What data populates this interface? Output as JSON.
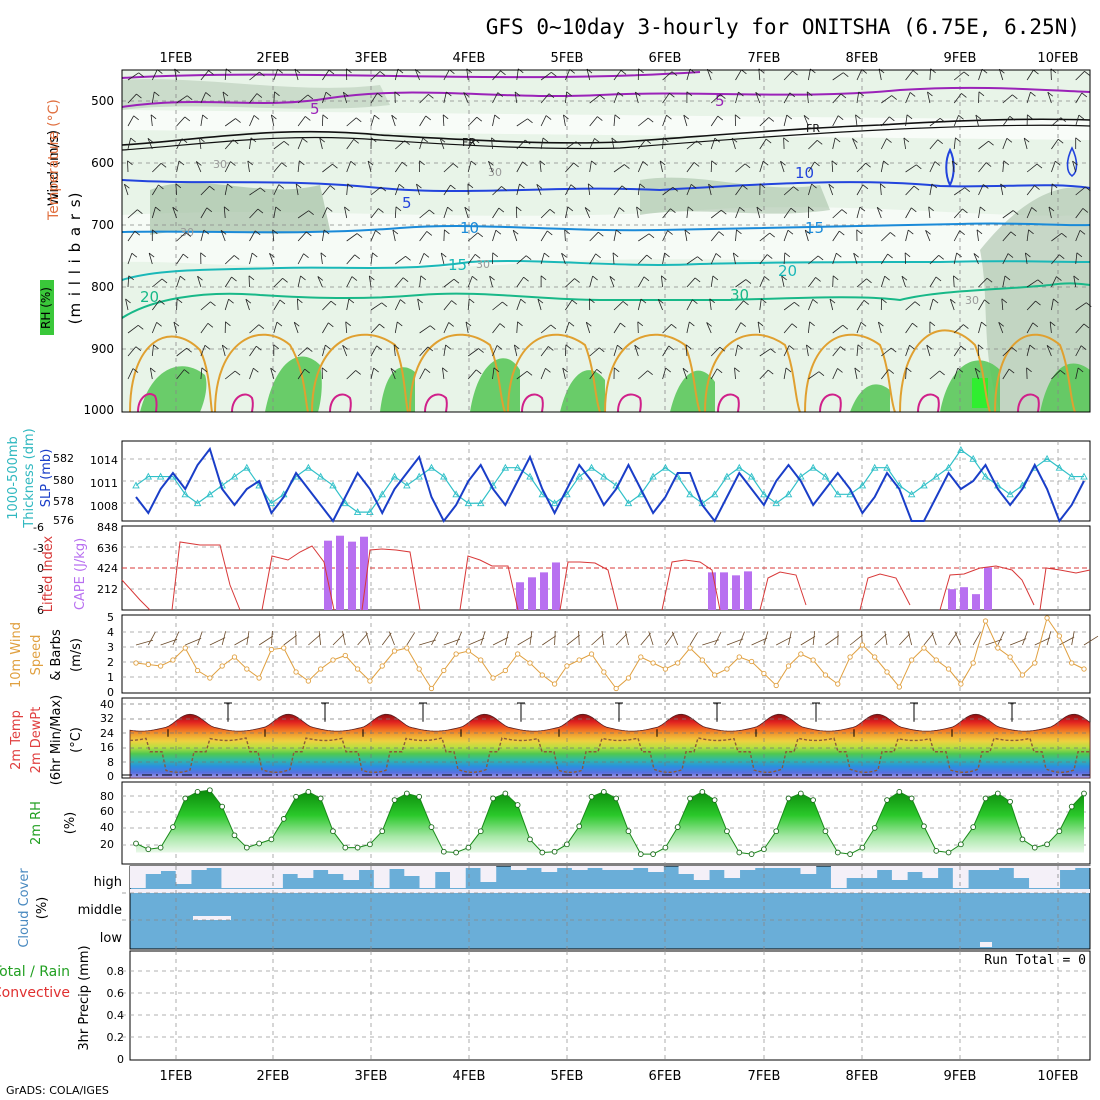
{
  "title": "GFS 0~10day 3-hourly for ONITSHA (6.75E, 6.25N)",
  "footer": "GrADS: COLA/IGES",
  "run_total": "Run Total = 0",
  "dates": [
    "1FEB",
    "2FEB",
    "3FEB",
    "4FEB",
    "5FEB",
    "6FEB",
    "7FEB",
    "8FEB",
    "9FEB",
    "10FEB"
  ],
  "colors": {
    "temp_purple": "#9a22b8",
    "temp_blue": "#2244dd",
    "temp_lightblue": "#1a8ad8",
    "temp_cyan": "#1ab8b8",
    "temp_green": "#18b888",
    "temp_orange": "#e0a030",
    "temp_magenta": "#d0208a",
    "slp": "#1a3ec8",
    "thickness": "#30c0c8",
    "cape": "#b870f0",
    "lifted_index": "#d83838",
    "wind10m": "#e0a040",
    "rh_green": "#22b022",
    "cloud": "#6aaed8",
    "label_green": "#22a022",
    "label_orange": "#e0a040",
    "label_red": "#e03030"
  },
  "panels": {
    "upper_air": {
      "ylabels": [
        "Wind (m/s)",
        "Temperature (°C)",
        "RH (%)",
        "(m i l l i b a r s)"
      ],
      "yticks": [
        "500",
        "600",
        "700",
        "800",
        "900",
        "1000"
      ],
      "contour_labels": [
        "5",
        "FR",
        "FR",
        "5",
        "5",
        "10",
        "10",
        "15",
        "15",
        "20",
        "20",
        "30",
        "30",
        "30",
        "30",
        "30",
        "30"
      ]
    },
    "slp_thickness": {
      "ylabels": [
        "1000-500mb",
        "Thickness (dm)",
        "SLP (mb)"
      ],
      "left_ticks": [
        "582",
        "580",
        "578",
        "576"
      ],
      "right_ticks": [
        "1014",
        "1011",
        "1008"
      ]
    },
    "cape_li": {
      "ylabels": [
        "Lifted Index",
        "CAPE (J/kg)"
      ],
      "left_ticks": [
        "-6",
        "-3",
        "0",
        "3",
        "6"
      ],
      "right_ticks": [
        "848",
        "636",
        "424",
        "212"
      ]
    },
    "wind10m": {
      "ylabels": [
        "10m Wind",
        "Speed",
        "& Barbs",
        "(m/s)"
      ],
      "yticks": [
        "5",
        "4",
        "3",
        "2",
        "1",
        "0"
      ]
    },
    "temp2m": {
      "ylabels": [
        "2m Temp",
        "2m DewPt",
        "(6hr Min/Max)",
        "(°C)"
      ],
      "yticks": [
        "40",
        "32",
        "24",
        "16",
        "8",
        "0"
      ]
    },
    "rh2m": {
      "ylabels": [
        "2m RH",
        "(%)"
      ],
      "yticks": [
        "80",
        "60",
        "40",
        "20"
      ]
    },
    "cloud": {
      "ylabels": [
        "Cloud Cover",
        "(%)"
      ],
      "levels": [
        "high",
        "middle",
        "low"
      ]
    },
    "precip": {
      "ylabels": [
        "Total / Rain",
        "Convective",
        "3hr Precip (mm)"
      ],
      "yticks": [
        "0.8",
        "0.6",
        "0.4",
        "0.2",
        "0"
      ]
    }
  },
  "chart_data": [
    {
      "type": "line",
      "name": "SLP",
      "ylabel": "SLP (mb)",
      "ylim": [
        1006,
        1016
      ],
      "values": [
        1009,
        1007,
        1010,
        1012,
        1010,
        1013,
        1015,
        1010,
        1008,
        1010,
        1011,
        1007,
        1009,
        1012,
        1010,
        1008,
        1006,
        1009,
        1012,
        1010,
        1007,
        1010,
        1012,
        1014,
        1009,
        1006,
        1008,
        1011,
        1013,
        1010,
        1008,
        1011,
        1014,
        1010,
        1007,
        1010,
        1013,
        1011,
        1008,
        1010,
        1013,
        1010,
        1007,
        1009,
        1012,
        1012,
        1008,
        1006,
        1009,
        1012,
        1010,
        1008,
        1011,
        1013,
        1011,
        1008,
        1010,
        1012,
        1010,
        1007,
        1009,
        1012,
        1010,
        1006,
        1006,
        1009,
        1012,
        1010,
        1011,
        1013,
        1010,
        1008,
        1010,
        1013,
        1010,
        1006,
        1008,
        1011
      ]
    },
    {
      "type": "line",
      "name": "Thickness",
      "ylabel": "1000-500mb Thickness (dm)",
      "ylim": [
        575,
        584
      ],
      "values": [
        579,
        580,
        580,
        580,
        578,
        577,
        578,
        579,
        580,
        581,
        579,
        577,
        578,
        580,
        581,
        580,
        579,
        577,
        576,
        576,
        578,
        580,
        579,
        580,
        581,
        580,
        578,
        577,
        577,
        579,
        581,
        581,
        580,
        578,
        577,
        578,
        580,
        581,
        580,
        579,
        577,
        578,
        580,
        581,
        580,
        578,
        577,
        578,
        580,
        581,
        580,
        578,
        577,
        578,
        580,
        581,
        580,
        578,
        578,
        579,
        581,
        581,
        579,
        578,
        579,
        580,
        581,
        583,
        582,
        580,
        579,
        578,
        579,
        581,
        582,
        581,
        580,
        580
      ]
    },
    {
      "type": "bar",
      "name": "CAPE",
      "ylabel": "CAPE (J/kg)",
      "ylim": [
        0,
        848
      ],
      "values": [
        0,
        0,
        0,
        0,
        0,
        0,
        0,
        0,
        0,
        0,
        0,
        0,
        0,
        0,
        0,
        0,
        700,
        750,
        690,
        740,
        0,
        0,
        0,
        0,
        0,
        0,
        0,
        0,
        0,
        0,
        0,
        0,
        280,
        330,
        380,
        480,
        0,
        0,
        0,
        0,
        0,
        0,
        0,
        0,
        0,
        0,
        0,
        0,
        380,
        380,
        350,
        390,
        0,
        0,
        0,
        0,
        0,
        0,
        0,
        0,
        0,
        0,
        0,
        0,
        0,
        0,
        0,
        0,
        210,
        230,
        160,
        430,
        0,
        0,
        0,
        0,
        0,
        0,
        0,
        0
      ]
    },
    {
      "type": "line",
      "name": "10m Wind Speed",
      "ylabel": "Speed (m/s)",
      "ylim": [
        0,
        5
      ],
      "values": [
        2.0,
        1.9,
        1.8,
        2.2,
        3.0,
        1.5,
        1.0,
        1.8,
        2.4,
        1.6,
        1.0,
        2.9,
        3.0,
        1.4,
        0.8,
        1.6,
        2.2,
        2.5,
        1.6,
        0.8,
        1.8,
        2.8,
        3.0,
        1.6,
        0.3,
        1.5,
        2.6,
        2.8,
        2.2,
        1.0,
        1.5,
        2.6,
        2.0,
        1.2,
        0.6,
        1.8,
        2.2,
        2.6,
        1.4,
        0.3,
        1.0,
        2.4,
        2.0,
        1.6,
        2.0,
        3.0,
        2.2,
        1.2,
        1.6,
        2.4,
        2.1,
        1.3,
        0.5,
        1.8,
        2.6,
        2.2,
        1.2,
        0.6,
        2.4,
        3.2,
        2.4,
        1.4,
        0.4,
        2.2,
        3.0,
        2.2,
        1.6,
        0.6,
        2.0,
        4.8,
        3.0,
        2.4,
        1.2,
        2.0,
        5.0,
        3.8,
        2.0,
        1.6
      ]
    },
    {
      "type": "area",
      "name": "2m RH",
      "ylabel": "(%)",
      "ylim": [
        0,
        100
      ],
      "values": [
        25,
        18,
        20,
        45,
        80,
        88,
        90,
        70,
        35,
        20,
        25,
        30,
        55,
        82,
        88,
        80,
        40,
        20,
        20,
        24,
        40,
        78,
        86,
        82,
        45,
        15,
        14,
        20,
        40,
        80,
        86,
        72,
        30,
        14,
        15,
        24,
        46,
        82,
        88,
        80,
        40,
        12,
        12,
        20,
        45,
        80,
        88,
        78,
        40,
        14,
        12,
        18,
        40,
        80,
        86,
        78,
        40,
        14,
        12,
        20,
        44,
        78,
        88,
        80,
        46,
        16,
        14,
        24,
        45,
        80,
        86,
        76,
        30,
        20,
        24,
        40,
        70,
        86
      ]
    }
  ]
}
